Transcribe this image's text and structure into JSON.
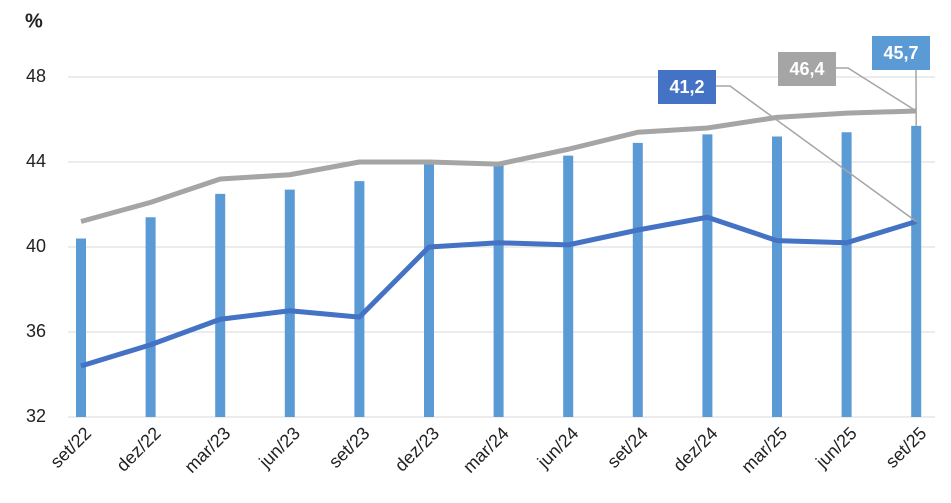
{
  "chart_data": {
    "type": "bar_line",
    "y_label": "%",
    "categories": [
      "set/22",
      "dez/22",
      "mar/23",
      "jun/23",
      "set/23",
      "dez/23",
      "mar/24",
      "jun/24",
      "set/24",
      "dez/24",
      "mar/25",
      "jun/25",
      "set/25"
    ],
    "series": [
      {
        "type": "bar",
        "color": "#5b9bd5",
        "values": [
          40.4,
          41.4,
          42.5,
          42.7,
          43.1,
          44.0,
          44.0,
          44.3,
          44.9,
          45.3,
          45.2,
          45.4,
          45.7
        ],
        "value_labels": [
          null,
          null,
          null,
          null,
          null,
          null,
          null,
          null,
          null,
          null,
          null,
          null,
          "45,7"
        ]
      },
      {
        "type": "line",
        "color": "#a5a5a5",
        "values": [
          41.2,
          42.1,
          43.2,
          43.4,
          44.0,
          44.0,
          43.9,
          44.6,
          45.4,
          45.6,
          46.1,
          46.3,
          46.4
        ],
        "value_labels": [
          null,
          null,
          null,
          null,
          null,
          null,
          null,
          null,
          null,
          null,
          null,
          null,
          "46,4"
        ]
      },
      {
        "type": "line",
        "color": "#4472c4",
        "values": [
          34.4,
          35.4,
          36.6,
          37.0,
          36.7,
          40.0,
          40.2,
          40.1,
          40.8,
          41.4,
          40.3,
          40.2,
          41.2
        ],
        "value_labels": [
          null,
          null,
          null,
          null,
          null,
          null,
          null,
          null,
          null,
          null,
          null,
          null,
          "41,2"
        ]
      }
    ],
    "ylim": [
      32,
      50
    ],
    "yticks": [
      32,
      36,
      40,
      44,
      48
    ],
    "grid": true
  }
}
